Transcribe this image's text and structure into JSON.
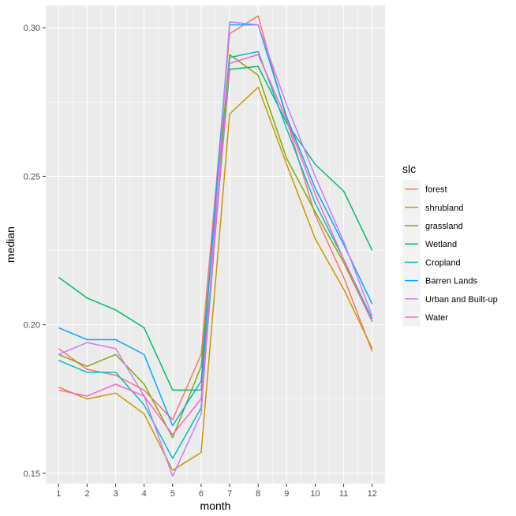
{
  "chart_data": {
    "type": "line",
    "title": "",
    "xlabel": "month",
    "ylabel": "median",
    "legend_title": "slc",
    "legend_position": "right",
    "grid": true,
    "x": [
      1,
      2,
      3,
      4,
      5,
      6,
      7,
      8,
      9,
      10,
      11,
      12
    ],
    "x_ticks": [
      "1",
      "2",
      "3",
      "4",
      "5",
      "6",
      "7",
      "8",
      "9",
      "10",
      "11",
      "12"
    ],
    "y_ticks": [
      0.15,
      0.2,
      0.25,
      0.3
    ],
    "y_tick_labels": [
      "0.15",
      "0.20",
      "0.25",
      "0.30"
    ],
    "xlim": [
      0.55,
      12.45
    ],
    "ylim": [
      0.1465,
      0.3075
    ],
    "series": [
      {
        "name": "forest",
        "color": "#F8766D",
        "values": [
          0.192,
          0.185,
          0.183,
          0.178,
          0.168,
          0.19,
          0.298,
          0.304,
          0.269,
          0.237,
          0.216,
          0.191
        ]
      },
      {
        "name": "shrubland",
        "color": "#CD9600",
        "values": [
          0.179,
          0.175,
          0.177,
          0.17,
          0.151,
          0.157,
          0.271,
          0.28,
          0.254,
          0.229,
          0.212,
          0.192
        ]
      },
      {
        "name": "grassland",
        "color": "#7CAE00",
        "values": [
          0.19,
          0.186,
          0.19,
          0.18,
          0.162,
          0.186,
          0.291,
          0.284,
          0.256,
          0.238,
          0.221,
          0.201
        ]
      },
      {
        "name": "Wetland",
        "color": "#00BE67",
        "values": [
          0.216,
          0.209,
          0.205,
          0.199,
          0.178,
          0.178,
          0.286,
          0.287,
          0.268,
          0.254,
          0.245,
          0.225
        ]
      },
      {
        "name": "Cropland",
        "color": "#00BFC4",
        "values": [
          0.188,
          0.184,
          0.184,
          0.173,
          0.155,
          0.172,
          0.29,
          0.292,
          0.266,
          0.241,
          0.222,
          0.202
        ]
      },
      {
        "name": "Barren Lands",
        "color": "#00A9FF",
        "values": [
          0.199,
          0.195,
          0.195,
          0.19,
          0.166,
          0.181,
          0.301,
          0.301,
          0.27,
          0.246,
          0.227,
          0.207
        ]
      },
      {
        "name": "Urban and Built-up",
        "color": "#C77CFF",
        "values": [
          0.19,
          0.194,
          0.192,
          0.176,
          0.149,
          0.17,
          0.302,
          0.301,
          0.274,
          0.25,
          0.228,
          0.203
        ]
      },
      {
        "name": "Water",
        "color": "#FF61CC",
        "values": [
          0.178,
          0.176,
          0.18,
          0.176,
          0.163,
          0.175,
          0.288,
          0.291,
          0.269,
          0.244,
          0.222,
          0.201
        ]
      }
    ]
  }
}
